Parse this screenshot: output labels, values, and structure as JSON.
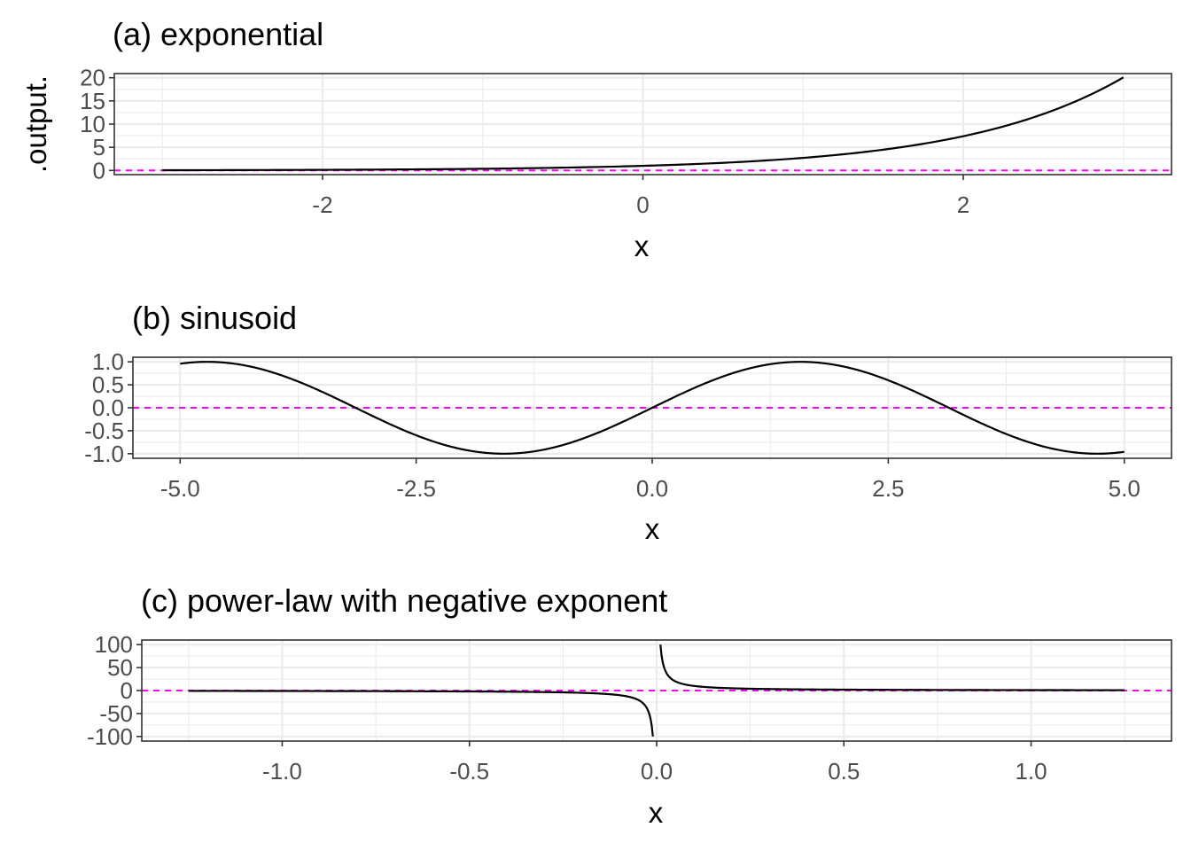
{
  "chart_data": [
    {
      "type": "line",
      "title": "(a) exponential",
      "xlabel": "x",
      "ylabel": ".output.",
      "xlim": [
        -3.3,
        3.3
      ],
      "ylim": [
        -0.9,
        20.9
      ],
      "xticks": [
        -2,
        0,
        2
      ],
      "xtick_labels": [
        "-2",
        "0",
        "2"
      ],
      "yticks": [
        0,
        5,
        10,
        15,
        20
      ],
      "ytick_labels": [
        "0",
        "5",
        "10",
        "15",
        "20"
      ],
      "reference_line": {
        "y": 0,
        "color": "#ff00ff",
        "style": "dashed"
      },
      "series": [
        {
          "color": "#000000",
          "x": [
            -3,
            -2.5,
            -2,
            -1.5,
            -1,
            -0.5,
            0,
            0.5,
            1,
            1.5,
            2,
            2.25,
            2.5,
            2.75,
            3
          ],
          "y": [
            0.05,
            0.08,
            0.14,
            0.22,
            0.37,
            0.61,
            1,
            1.65,
            2.72,
            4.48,
            7.39,
            9.49,
            12.18,
            15.64,
            20.09
          ]
        }
      ],
      "grid": true
    },
    {
      "type": "line",
      "title": "(b) sinusoid",
      "xlabel": "x",
      "ylabel": "",
      "xlim": [
        -5.5,
        5.5
      ],
      "ylim": [
        -1.1,
        1.1
      ],
      "xticks": [
        -5,
        -2.5,
        0,
        2.5,
        5
      ],
      "xtick_labels": [
        "-5.0",
        "-2.5",
        "0.0",
        "2.5",
        "5.0"
      ],
      "yticks": [
        -1,
        -0.5,
        0,
        0.5,
        1
      ],
      "ytick_labels": [
        "-1.0",
        "-0.5",
        "0.0",
        "0.5",
        "1.0"
      ],
      "reference_line": {
        "y": 0,
        "color": "#ff00ff",
        "style": "dashed"
      },
      "series": [
        {
          "color": "#000000",
          "function": "sin",
          "x_range": [
            -5,
            5
          ]
        }
      ],
      "grid": true
    },
    {
      "type": "line",
      "title": "(c) power-law with negative exponent",
      "xlabel": "x",
      "ylabel": "",
      "xlim": [
        -1.375,
        1.375
      ],
      "ylim": [
        -110,
        110
      ],
      "xticks": [
        -1,
        -0.5,
        0,
        0.5,
        1
      ],
      "xtick_labels": [
        "-1.0",
        "-0.5",
        "0.0",
        "0.5",
        "1.0"
      ],
      "yticks": [
        -100,
        -50,
        0,
        50,
        100
      ],
      "ytick_labels": [
        "-100",
        "-50",
        "0",
        "50",
        "100"
      ],
      "reference_line": {
        "y": 0,
        "color": "#ff00ff",
        "style": "dashed"
      },
      "series": [
        {
          "color": "#000000",
          "function": "1/x",
          "x_range": [
            -1.25,
            1.25
          ],
          "x_min_abs": 0.01
        }
      ],
      "grid": true
    }
  ]
}
